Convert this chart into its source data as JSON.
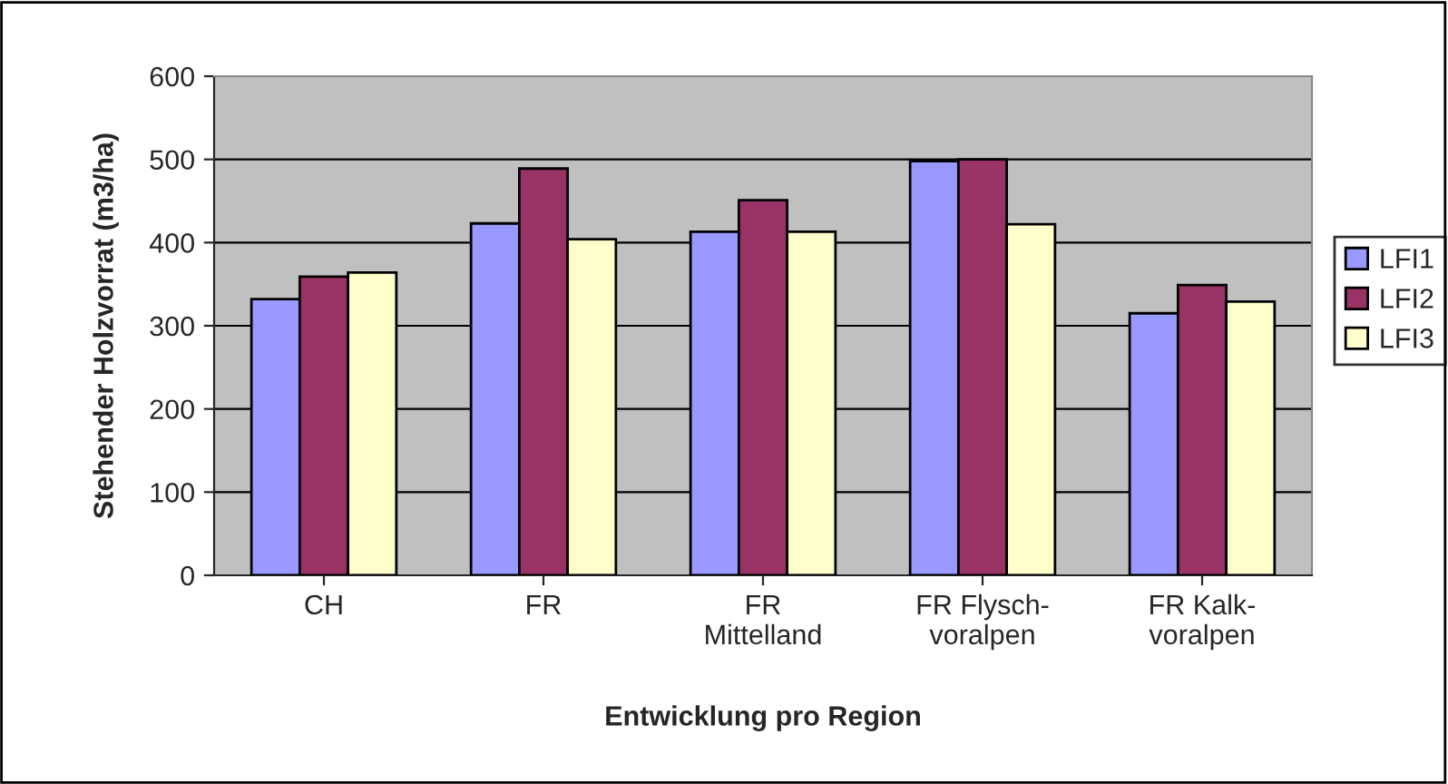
{
  "chart_data": {
    "type": "bar",
    "xlabel": "Entwicklung pro Region",
    "ylabel": "Stehender Holzvorrat (m3/ha)",
    "categories": [
      "CH",
      "FR",
      "FR\nMittelland",
      "FR Flysch-\nvoralpen",
      "FR Kalk-\nvoralpen"
    ],
    "series": [
      {
        "name": "LFI1",
        "color": "#9999ff",
        "values": [
          332,
          423,
          413,
          498,
          315
        ]
      },
      {
        "name": "LFI2",
        "color": "#993366",
        "values": [
          359,
          489,
          451,
          500,
          349
        ]
      },
      {
        "name": "LFI3",
        "color": "#ffffcc",
        "values": [
          364,
          404,
          413,
          422,
          329
        ]
      }
    ],
    "ylim": [
      0,
      600
    ],
    "yticks": [
      0,
      100,
      200,
      300,
      400,
      500,
      600
    ],
    "grid": "y",
    "legend": "right"
  }
}
